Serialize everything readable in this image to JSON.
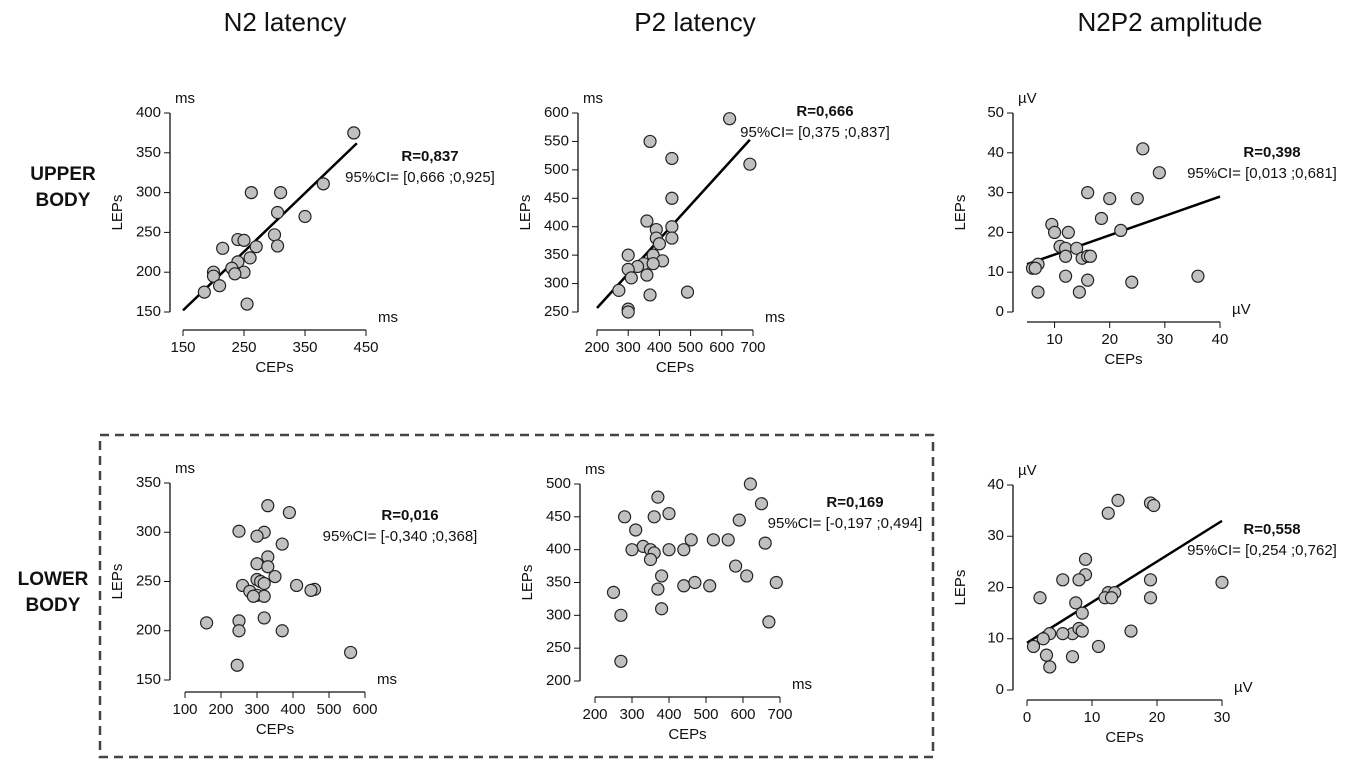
{
  "column_titles": [
    "N2 latency",
    "P2 latency",
    "N2P2 amplitude"
  ],
  "row_labels": [
    "UPPER BODY",
    "LOWER BODY"
  ],
  "chart_data": [
    {
      "type": "scatter",
      "xlabel": "CEPs",
      "ylabel": "LEPs",
      "x_unit": "ms",
      "y_unit": "ms",
      "color": "#c0c0c0",
      "annotation": [
        "R=0,837",
        "95%CI= [0,666 ;0,925]"
      ],
      "xlim": [
        150,
        450
      ],
      "xticks": [
        150,
        250,
        350,
        450
      ],
      "ylim": [
        150,
        400
      ],
      "yticks": [
        150,
        200,
        250,
        300,
        350,
        400
      ],
      "x": [
        430,
        380,
        310,
        262,
        305,
        350,
        300,
        305,
        270,
        240,
        250,
        215,
        240,
        260,
        230,
        250,
        235,
        200,
        200,
        210,
        185,
        255
      ],
      "values": [
        375,
        311,
        300,
        300,
        275,
        270,
        247,
        233,
        232,
        241,
        240,
        230,
        213,
        218,
        205,
        200,
        198,
        200,
        195,
        183,
        175,
        160
      ],
      "trend_line": {
        "x": [
          150,
          435
        ],
        "values": [
          152,
          362
        ]
      }
    },
    {
      "type": "scatter",
      "xlabel": "CEPs",
      "ylabel": "LEPs",
      "x_unit": "ms",
      "y_unit": "ms",
      "color": "#c0c0c0",
      "annotation": [
        "R=0,666",
        "95%CI= [0,375 ;0,837]"
      ],
      "xlim": [
        200,
        700
      ],
      "xticks": [
        200,
        300,
        400,
        500,
        600,
        700
      ],
      "ylim": [
        250,
        600
      ],
      "yticks": [
        250,
        300,
        350,
        400,
        450,
        500,
        550,
        600
      ],
      "x": [
        625,
        370,
        440,
        690,
        440,
        360,
        440,
        390,
        440,
        390,
        400,
        380,
        300,
        410,
        350,
        380,
        330,
        300,
        310,
        360,
        490,
        270,
        370,
        300,
        300
      ],
      "values": [
        590,
        550,
        520,
        510,
        450,
        410,
        400,
        395,
        380,
        380,
        370,
        350,
        350,
        340,
        335,
        335,
        330,
        325,
        310,
        315,
        285,
        288,
        280,
        255,
        250
      ],
      "trend_line": {
        "x": [
          200,
          690
        ],
        "values": [
          257,
          553
        ]
      }
    },
    {
      "type": "scatter",
      "xlabel": "CEPs",
      "ylabel": "LEPs",
      "x_unit": "µV",
      "y_unit": "µV",
      "color": "#c0c0c0",
      "annotation": [
        "R=0,398",
        "95%CI= [0,013 ;0,681]"
      ],
      "xlim": [
        5,
        40
      ],
      "xticks": [
        10,
        20,
        30,
        40
      ],
      "ylim": [
        0,
        50
      ],
      "yticks": [
        0,
        10,
        20,
        30,
        40,
        50
      ],
      "x": [
        26,
        29,
        16,
        20,
        25,
        18.5,
        22,
        9.5,
        10,
        12.5,
        11,
        12,
        14,
        12,
        15,
        16,
        16.5,
        6,
        7,
        6.5,
        12,
        16,
        24,
        36,
        7,
        14.5
      ],
      "values": [
        41,
        35,
        30,
        28.5,
        28.5,
        23.5,
        20.5,
        22,
        20,
        20,
        16.5,
        16,
        16,
        14,
        13.5,
        14,
        14,
        11,
        12,
        11,
        9,
        8,
        7.5,
        9,
        5,
        5
      ],
      "trend_line": {
        "x": [
          5,
          40
        ],
        "values": [
          12,
          29
        ]
      }
    },
    {
      "type": "scatter",
      "xlabel": "CEPs",
      "ylabel": "LEPs",
      "x_unit": "ms",
      "y_unit": "ms",
      "color": "#c0c0c0",
      "annotation": [
        "R=0,016",
        "95%CI= [-0,340 ;0,368]"
      ],
      "xlim": [
        100,
        600
      ],
      "xticks": [
        100,
        200,
        300,
        400,
        500,
        600
      ],
      "ylim": [
        150,
        350
      ],
      "yticks": [
        150,
        200,
        250,
        300,
        350
      ],
      "x": [
        330,
        390,
        320,
        250,
        300,
        370,
        330,
        300,
        330,
        350,
        300,
        310,
        320,
        260,
        410,
        460,
        450,
        280,
        300,
        320,
        290,
        320,
        250,
        160,
        250,
        370,
        560,
        245
      ],
      "values": [
        327,
        320,
        300,
        301,
        296,
        288,
        275,
        268,
        265,
        255,
        252,
        250,
        248,
        246,
        246,
        242,
        241,
        240,
        236,
        235,
        235,
        213,
        210,
        208,
        200,
        200,
        178,
        165
      ]
    },
    {
      "type": "scatter",
      "xlabel": "CEPs",
      "ylabel": "LEPs",
      "x_unit": "ms",
      "y_unit": "ms",
      "color": "#c0c0c0",
      "annotation": [
        "R=0,169",
        "95%CI= [-0,197 ;0,494]"
      ],
      "xlim": [
        200,
        700
      ],
      "xticks": [
        200,
        300,
        400,
        500,
        600,
        700
      ],
      "ylim": [
        200,
        500
      ],
      "yticks": [
        200,
        250,
        300,
        350,
        400,
        450,
        500
      ],
      "x": [
        620,
        370,
        650,
        280,
        360,
        400,
        310,
        590,
        460,
        520,
        560,
        330,
        350,
        300,
        400,
        440,
        360,
        350,
        660,
        380,
        440,
        470,
        370,
        580,
        610,
        690,
        380,
        510,
        250,
        270,
        670,
        270
      ],
      "values": [
        500,
        480,
        470,
        450,
        450,
        455,
        430,
        445,
        415,
        415,
        415,
        405,
        400,
        400,
        400,
        400,
        395,
        385,
        410,
        360,
        345,
        350,
        340,
        375,
        360,
        350,
        310,
        345,
        335,
        300,
        290,
        230
      ]
    },
    {
      "type": "scatter",
      "xlabel": "CEPs",
      "ylabel": "LEPs",
      "x_unit": "µV",
      "y_unit": "µV",
      "color": "#c0c0c0",
      "annotation": [
        "R=0,558",
        "95%CI= [0,254 ;0,762]"
      ],
      "xlim": [
        0,
        30
      ],
      "xticks": [
        0,
        10,
        20,
        30
      ],
      "ylim": [
        0,
        40
      ],
      "yticks": [
        0,
        10,
        20,
        30,
        40
      ],
      "x": [
        14,
        19,
        19.5,
        12.5,
        9,
        9,
        5.5,
        8,
        19,
        30,
        12.5,
        13.5,
        12,
        13,
        2,
        19,
        7.5,
        8.5,
        7,
        8,
        8.5,
        16,
        3.5,
        5.5,
        2.5,
        11,
        1,
        7,
        3,
        3.5
      ],
      "values": [
        37,
        36.5,
        36,
        34.5,
        25.5,
        22.5,
        21.5,
        21.5,
        21.5,
        21,
        19,
        19,
        18,
        18,
        18,
        18,
        17,
        15,
        11,
        12,
        11.5,
        11.5,
        11,
        11,
        10,
        8.5,
        8.5,
        6.5,
        6.8,
        4.5
      ],
      "trend_line": {
        "x": [
          0,
          30
        ],
        "values": [
          9.2,
          33
        ]
      }
    }
  ]
}
